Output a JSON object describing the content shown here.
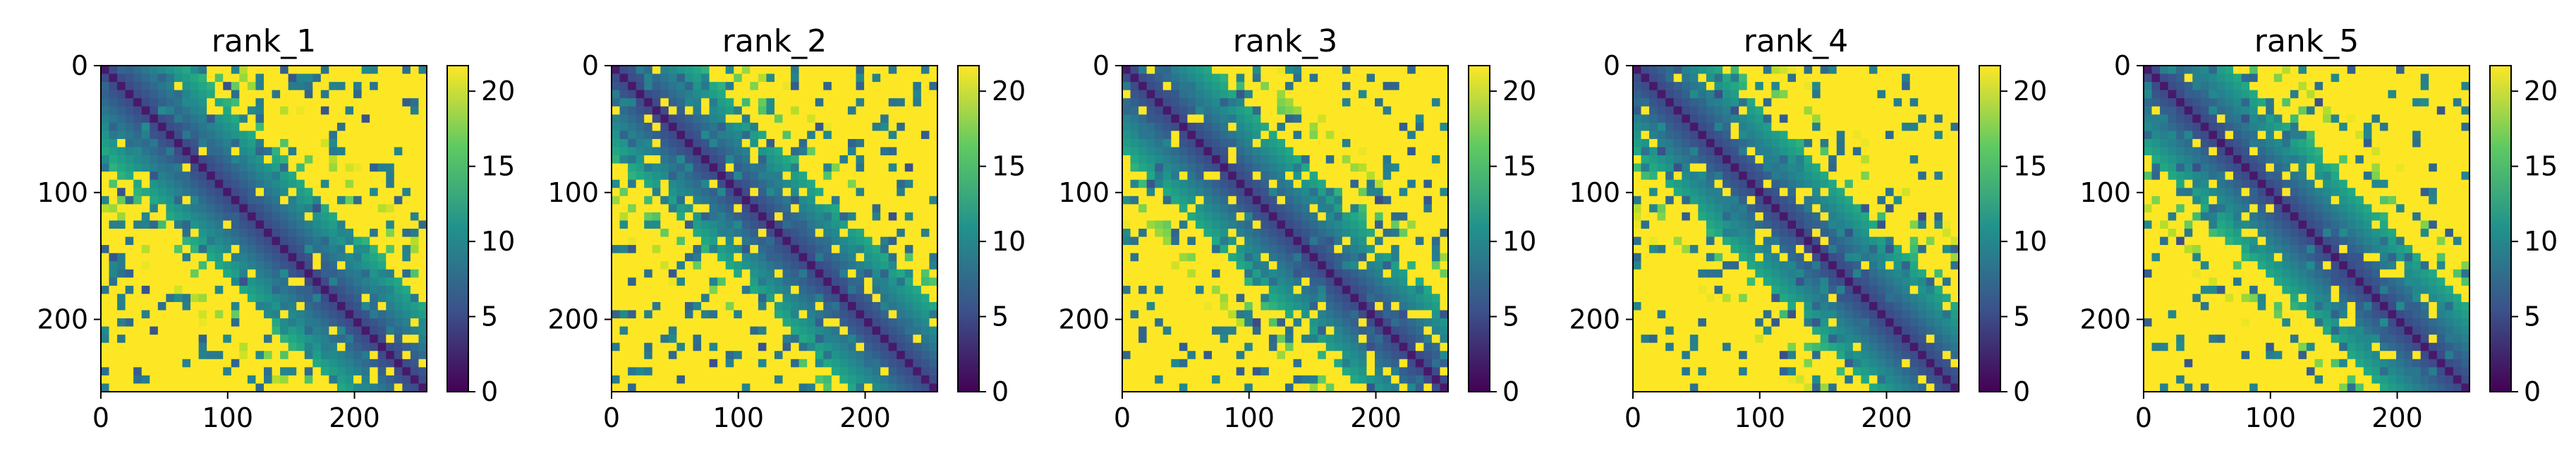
{
  "chart_data": [
    {
      "type": "heatmap",
      "title": "rank_1",
      "xlabel": "",
      "ylabel": "",
      "x_ticks": [
        0,
        100,
        200
      ],
      "y_ticks": [
        0,
        100,
        200
      ],
      "xlim": [
        0,
        257
      ],
      "ylim": [
        257,
        0
      ],
      "colorbar": {
        "ticks": [
          0,
          5,
          10,
          15,
          20
        ],
        "range": [
          0,
          21.7
        ],
        "colormap": "viridis"
      },
      "grid": false
    },
    {
      "type": "heatmap",
      "title": "rank_2",
      "xlabel": "",
      "ylabel": "",
      "x_ticks": [
        0,
        100,
        200
      ],
      "y_ticks": [
        0,
        100,
        200
      ],
      "xlim": [
        0,
        257
      ],
      "ylim": [
        257,
        0
      ],
      "colorbar": {
        "ticks": [
          0,
          5,
          10,
          15,
          20
        ],
        "range": [
          0,
          21.7
        ],
        "colormap": "viridis"
      },
      "grid": false
    },
    {
      "type": "heatmap",
      "title": "rank_3",
      "xlabel": "",
      "ylabel": "",
      "x_ticks": [
        0,
        100,
        200
      ],
      "y_ticks": [
        0,
        100,
        200
      ],
      "xlim": [
        0,
        257
      ],
      "ylim": [
        257,
        0
      ],
      "colorbar": {
        "ticks": [
          0,
          5,
          10,
          15,
          20
        ],
        "range": [
          0,
          21.7
        ],
        "colormap": "viridis"
      },
      "grid": false
    },
    {
      "type": "heatmap",
      "title": "rank_4",
      "xlabel": "",
      "ylabel": "",
      "x_ticks": [
        0,
        100,
        200
      ],
      "y_ticks": [
        0,
        100,
        200
      ],
      "xlim": [
        0,
        257
      ],
      "ylim": [
        257,
        0
      ],
      "colorbar": {
        "ticks": [
          0,
          5,
          10,
          15,
          20
        ],
        "range": [
          0,
          21.7
        ],
        "colormap": "viridis"
      },
      "grid": false
    },
    {
      "type": "heatmap",
      "title": "rank_5",
      "xlabel": "",
      "ylabel": "",
      "x_ticks": [
        0,
        100,
        200
      ],
      "y_ticks": [
        0,
        100,
        200
      ],
      "xlim": [
        0,
        257
      ],
      "ylim": [
        257,
        0
      ],
      "colorbar": {
        "ticks": [
          0,
          5,
          10,
          15,
          20
        ],
        "range": [
          0,
          21.7
        ],
        "colormap": "viridis"
      },
      "grid": false
    }
  ],
  "colors": {
    "viridis_low": "#440154",
    "viridis_mid": "#21918c",
    "viridis_high": "#fde725",
    "axis": "#000000"
  }
}
